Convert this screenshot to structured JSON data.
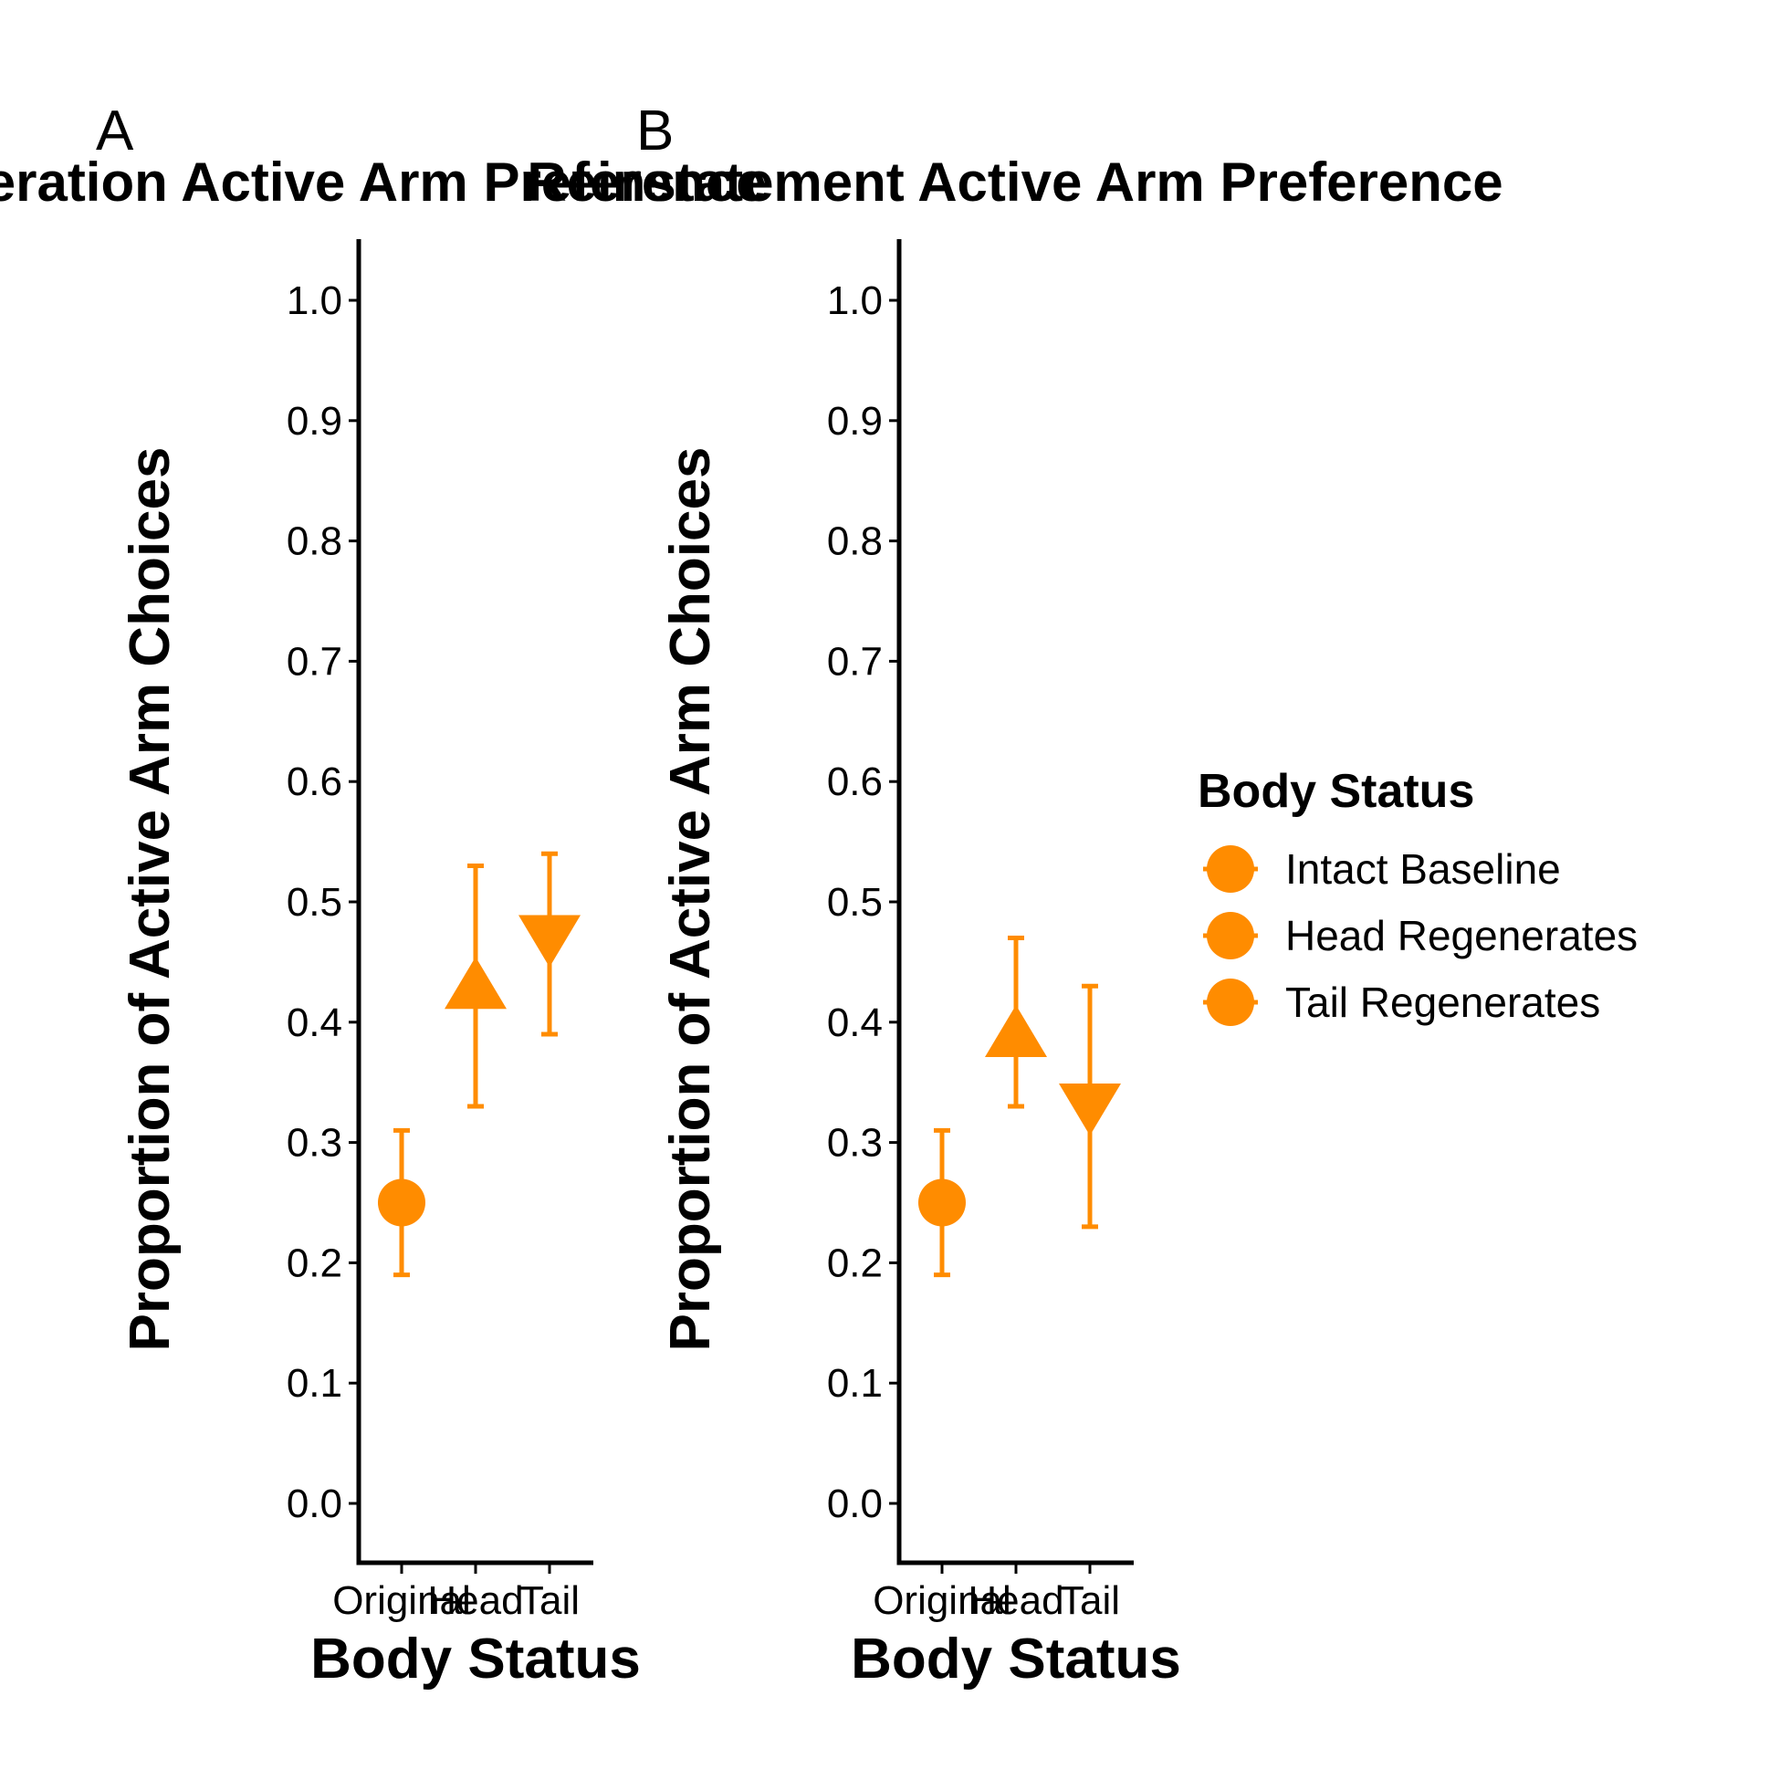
{
  "chart_data": [
    {
      "type": "scatter",
      "panel_label": "A",
      "title": "Regeneration Active Arm Preference",
      "xlabel": "Body Status",
      "ylabel": "Proportion of Active Arm Choices",
      "categories": [
        "Original",
        "Head",
        "Tail"
      ],
      "points": [
        {
          "category": "Original",
          "y": 0.25,
          "ymin": 0.19,
          "ymax": 0.31,
          "shape": "circle"
        },
        {
          "category": "Head",
          "y": 0.43,
          "ymin": 0.33,
          "ymax": 0.53,
          "shape": "triangle-up"
        },
        {
          "category": "Tail",
          "y": 0.47,
          "ymin": 0.39,
          "ymax": 0.54,
          "shape": "triangle-down"
        }
      ],
      "ylim": [
        0.0,
        1.0
      ],
      "yticks": [
        "0.0",
        "0.1",
        "0.2",
        "0.3",
        "0.4",
        "0.5",
        "0.6",
        "0.7",
        "0.8",
        "0.9",
        "1.0"
      ],
      "grid": false
    },
    {
      "type": "scatter",
      "panel_label": "B",
      "title": "Reinstatement Active Arm Preference",
      "xlabel": "Body Status",
      "ylabel": "Proportion of Active Arm Choices",
      "categories": [
        "Original",
        "Head",
        "Tail"
      ],
      "points": [
        {
          "category": "Original",
          "y": 0.25,
          "ymin": 0.19,
          "ymax": 0.31,
          "shape": "circle"
        },
        {
          "category": "Head",
          "y": 0.39,
          "ymin": 0.33,
          "ymax": 0.47,
          "shape": "triangle-up"
        },
        {
          "category": "Tail",
          "y": 0.33,
          "ymin": 0.23,
          "ymax": 0.43,
          "shape": "triangle-down"
        }
      ],
      "ylim": [
        0.0,
        1.0
      ],
      "yticks": [
        "0.0",
        "0.1",
        "0.2",
        "0.3",
        "0.4",
        "0.5",
        "0.6",
        "0.7",
        "0.8",
        "0.9",
        "1.0"
      ],
      "grid": false
    }
  ],
  "legend": {
    "title": "Body Status",
    "items": [
      "Intact Baseline",
      "Head Regenerates",
      "Tail Regenerates"
    ],
    "placement": "right"
  },
  "colors": {
    "series": "#ff8c00",
    "axis": "#000000"
  }
}
